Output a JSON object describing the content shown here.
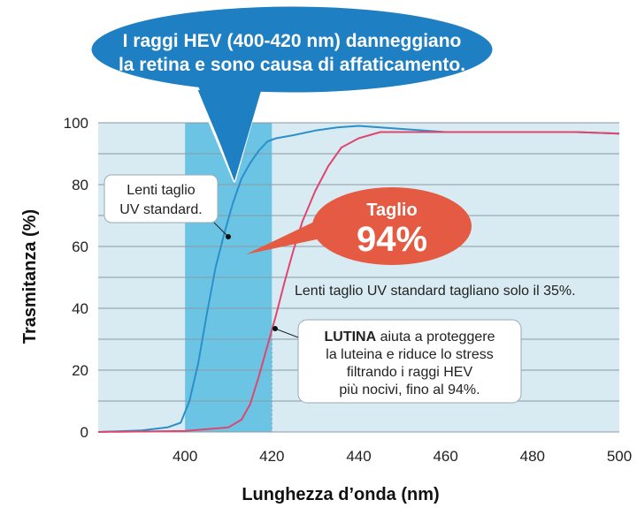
{
  "chart_data": {
    "type": "line",
    "xlabel": "Lunghezza d’onda (nm)",
    "ylabel": "Trasmitanza (%)",
    "xlim": [
      380,
      500
    ],
    "ylim": [
      0,
      100
    ],
    "x_ticks": [
      "400",
      "420",
      "440",
      "460",
      "480",
      "500"
    ],
    "y_ticks": [
      "0",
      "20",
      "40",
      "60",
      "80",
      "100"
    ],
    "grid": true,
    "highlight_band": {
      "from": 400,
      "to": 420,
      "color": "#6cc4e4"
    },
    "series": [
      {
        "color": "#2b8fcc",
        "x": [
          380,
          390,
          396,
          399,
          401,
          403,
          405,
          407,
          409,
          411,
          413,
          415,
          417,
          419,
          421,
          425,
          430,
          435,
          440,
          445,
          450,
          460,
          470,
          480,
          490,
          500
        ],
        "y": [
          0,
          0.5,
          1.5,
          3,
          10,
          22,
          38,
          53,
          64,
          74,
          82,
          87,
          91,
          94,
          95,
          96,
          97.5,
          98.5,
          99,
          98.5,
          98,
          97,
          97,
          97,
          97,
          96.5
        ]
      },
      {
        "color": "#e0456e",
        "x": [
          380,
          400,
          410,
          413,
          415,
          417,
          419,
          421,
          423,
          425,
          427,
          430,
          433,
          436,
          440,
          445,
          450,
          460,
          470,
          480,
          490,
          500
        ],
        "y": [
          0,
          0.3,
          1.5,
          4,
          9,
          18,
          28,
          38,
          49,
          59,
          68,
          78,
          86,
          92,
          95,
          97,
          97,
          97,
          97,
          97,
          97,
          96.5
        ]
      }
    ],
    "annotations": [
      {
        "id": "hev",
        "lines": [
          "I raggi HEV (400-420 nm) danneggiano",
          "la retina e sono causa di affaticamento."
        ]
      },
      {
        "id": "standard",
        "lines": [
          "Lenti taglio",
          "UV standard."
        ]
      },
      {
        "id": "cut",
        "small": "Taglio",
        "big": "94%"
      },
      {
        "id": "note",
        "text": "Lenti taglio UV standard tagliano solo il 35%."
      },
      {
        "id": "lutina",
        "bold": "LUTINA",
        "lines": [
          " aiuta a proteggere",
          "la luteina e riduce lo stress",
          "filtrando i raggi HEV",
          "più nocivi, fino al 94%."
        ]
      }
    ],
    "colors": {
      "plot_bg": "#d9ebf2",
      "grid": "#8a9aa4",
      "callout_blue": "#1f7fc3",
      "callout_red": "#e45a43"
    }
  }
}
